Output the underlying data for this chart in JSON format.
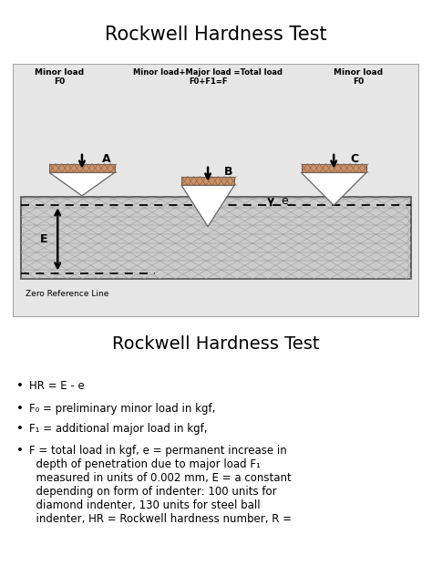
{
  "title": "Rockwell Hardness Test",
  "title2": "Rockwell Hardness Test",
  "text_minor_load_A": "Minor load\nF0",
  "text_total_load": "Minor load+Major load =Total load\nF0+F1=F",
  "text_minor_load_C": "Minor load\nF0",
  "text_zero_ref": "Zero Reference Line",
  "indenter_brown": "#c8956a",
  "indenter_edge": "#666666",
  "mat_fill": "#cccccc",
  "mat_edge": "#444444",
  "hatch_color": "#aaaaaa",
  "bg_diagram": "#e6e6e6",
  "bullet_line1": "HR = E - e",
  "bullet_line2_pre": "F",
  "bullet_line2_sub": "0",
  "bullet_line2_post": " = preliminary minor load in kgf,",
  "bullet_line3_pre": "F",
  "bullet_line3_sub": "1",
  "bullet_line3_post": " = additional major load in kgf,",
  "bullet_line4_pre": "F = total load in kgf, e = permanent increase in\ndepth of penetration due to major load F",
  "bullet_line4_sub": "1",
  "bullet_line4_post": "\nmeasured in units of 0.002 mm, E = a constant\ndepending on form of indenter: 100 units for\ndiamond indenter, 130 units for steel ball\nindenter, HR = Rockwell hardness number, R ="
}
